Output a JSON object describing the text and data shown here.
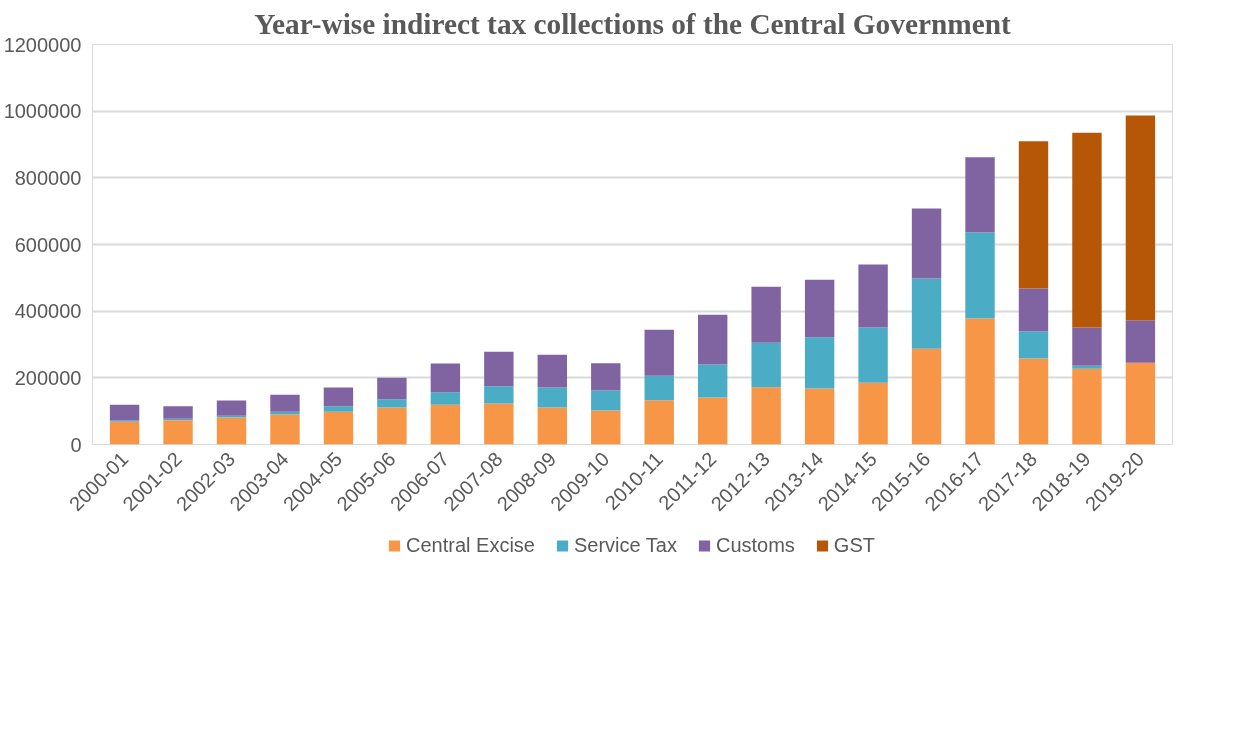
{
  "chart_data": {
    "type": "bar",
    "stacked": true,
    "title": "Year-wise indirect tax collections of the Central Government",
    "categories": [
      "2000-01",
      "2001-02",
      "2002-03",
      "2003-04",
      "2004-05",
      "2005-06",
      "2006-07",
      "2007-08",
      "2008-09",
      "2009-10",
      "2010-11",
      "2011-12",
      "2012-13",
      "2013-14",
      "2014-15",
      "2015-16",
      "2016-17",
      "2017-18",
      "2018-19",
      "2019-20"
    ],
    "series": [
      {
        "name": "Central Excise",
        "color": "#f79646",
        "values": [
          68000,
          73000,
          81000,
          90000,
          98000,
          111000,
          119000,
          123000,
          111000,
          102000,
          133000,
          141000,
          172000,
          168000,
          185000,
          287000,
          378000,
          258000,
          227000,
          245000
        ]
      },
      {
        "name": "Service Tax",
        "color": "#4bacc6",
        "values": [
          4000,
          4000,
          5000,
          8000,
          17000,
          25000,
          38000,
          52000,
          60000,
          60000,
          73000,
          99000,
          133000,
          154000,
          166000,
          211000,
          258000,
          82000,
          9000,
          0
        ]
      },
      {
        "name": "Customs",
        "color": "#8064a2",
        "values": [
          47000,
          38000,
          46000,
          51000,
          56000,
          64000,
          86000,
          103000,
          98000,
          82000,
          138000,
          149000,
          168000,
          172000,
          189000,
          210000,
          226000,
          128000,
          115000,
          128000
        ]
      },
      {
        "name": "GST",
        "color": "#b65708",
        "values": [
          null,
          null,
          null,
          null,
          null,
          null,
          null,
          null,
          null,
          null,
          null,
          null,
          null,
          null,
          null,
          null,
          null,
          442000,
          584000,
          614000
        ]
      }
    ],
    "ylim": [
      0,
      1200000
    ],
    "yticks": [
      0,
      200000,
      400000,
      600000,
      800000,
      1000000,
      1200000
    ],
    "grid": "y",
    "legend": "bottom"
  }
}
